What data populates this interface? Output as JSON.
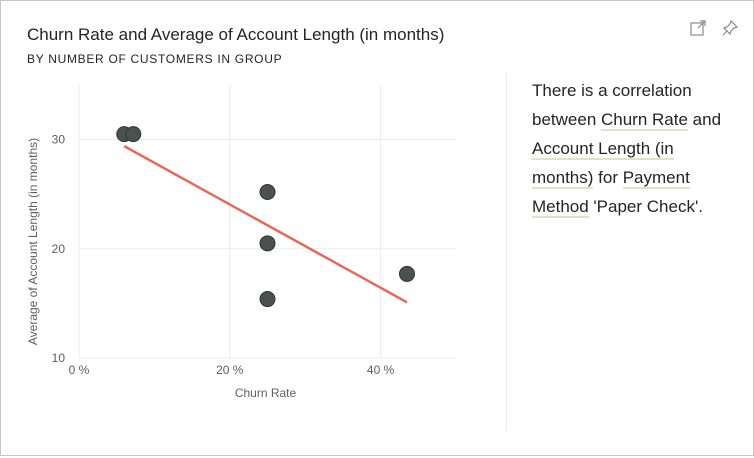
{
  "card": {
    "title": "Churn Rate and Average of Account Length (in months)",
    "subtitle": "BY NUMBER OF CUSTOMERS IN GROUP",
    "icons": [
      "focus-mode-icon",
      "pin-icon"
    ]
  },
  "colors": {
    "point": "#4a524f",
    "point_stroke": "#2f3533",
    "trend": "#e8675a",
    "grid": "#ebebeb",
    "tick_text": "#605e5c",
    "highlight_underline": "#dde3c4"
  },
  "chart_data": {
    "type": "scatter",
    "title": "Churn Rate and Average of Account Length (in months)",
    "subtitle": "BY NUMBER OF CUSTOMERS IN GROUP",
    "xlabel": "Churn Rate",
    "ylabel": "Average of Account Length (in months)",
    "xlim": [
      0,
      50
    ],
    "ylim": [
      10,
      35
    ],
    "x_ticks": [
      0,
      20,
      40
    ],
    "x_tick_labels": [
      "0 %",
      "20 %",
      "40 %"
    ],
    "y_ticks": [
      10,
      20,
      30
    ],
    "y_tick_labels": [
      "10",
      "20",
      "30"
    ],
    "grid": true,
    "points": [
      {
        "x": 6.0,
        "y": 30.5
      },
      {
        "x": 7.2,
        "y": 30.5
      },
      {
        "x": 25.0,
        "y": 25.2
      },
      {
        "x": 25.0,
        "y": 20.5
      },
      {
        "x": 25.0,
        "y": 15.4
      },
      {
        "x": 43.5,
        "y": 17.7
      }
    ],
    "trendline": {
      "x1": 6.0,
      "y1": 29.4,
      "x2": 43.5,
      "y2": 15.1
    }
  },
  "narrative": {
    "t1": "There is a correlation between ",
    "h1": "Churn Rate",
    "t2": " and ",
    "h2": "Account Length (in months)",
    "t3": " for ",
    "h3": "Payment Method",
    "t4": " 'Paper Check'."
  }
}
